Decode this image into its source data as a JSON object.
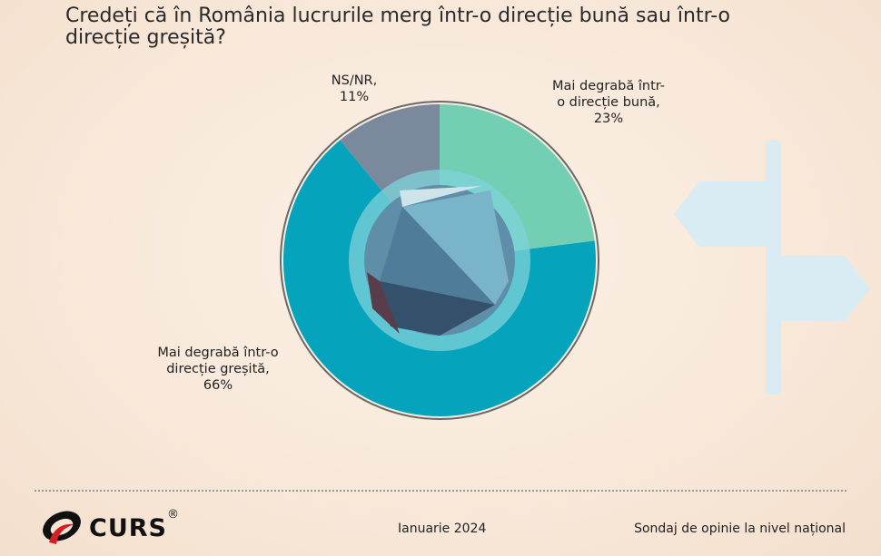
{
  "chart_data": {
    "type": "pie",
    "title": "Credeți că în România lucrurile merg într-o direcție bună sau într-o direcție greșită?",
    "slices": [
      {
        "label": "Mai degrabă într-o direcție bună",
        "value": 23,
        "value_label": "23%",
        "color": "#72cfb3"
      },
      {
        "label": "Mai degrabă într-o direcție greșită",
        "value": 66,
        "value_label": "66%",
        "color": "#05a3bc"
      },
      {
        "label": "NS/NR",
        "value": 11,
        "value_label": "11%",
        "color": "#7a8a9c"
      }
    ],
    "donut": true
  },
  "footer": {
    "brand": "CURS",
    "registered": "®",
    "date": "Ianuarie 2024",
    "source": "Sondaj de opinie la nivel național"
  }
}
